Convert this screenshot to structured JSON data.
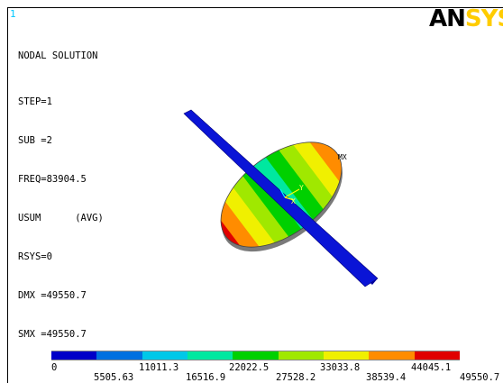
{
  "window_number": "1",
  "logo": {
    "part1": "AN",
    "part2": "SYS"
  },
  "info": {
    "title": "NODAL SOLUTION",
    "lines": [
      "STEP=1",
      "SUB =2",
      "FREQ=83904.5",
      "USUM      (AVG)",
      "RSYS=0",
      "DMX =49550.7",
      "SMX =49550.7"
    ]
  },
  "markers": {
    "max": "MX",
    "axis_y": "Y",
    "axis_x": "X"
  },
  "legend": {
    "colors": [
      "#0000c8",
      "#0070e0",
      "#00c8e8",
      "#00e8a0",
      "#00d000",
      "#a0e800",
      "#f0f000",
      "#ff8c00",
      "#e00000"
    ],
    "top_labels": [
      "0",
      "11011.3",
      "22022.5",
      "33033.8",
      "44045.1"
    ],
    "bottom_labels": [
      "5505.63",
      "16516.9",
      "27528.2",
      "38539.4",
      "49550.7"
    ]
  }
}
